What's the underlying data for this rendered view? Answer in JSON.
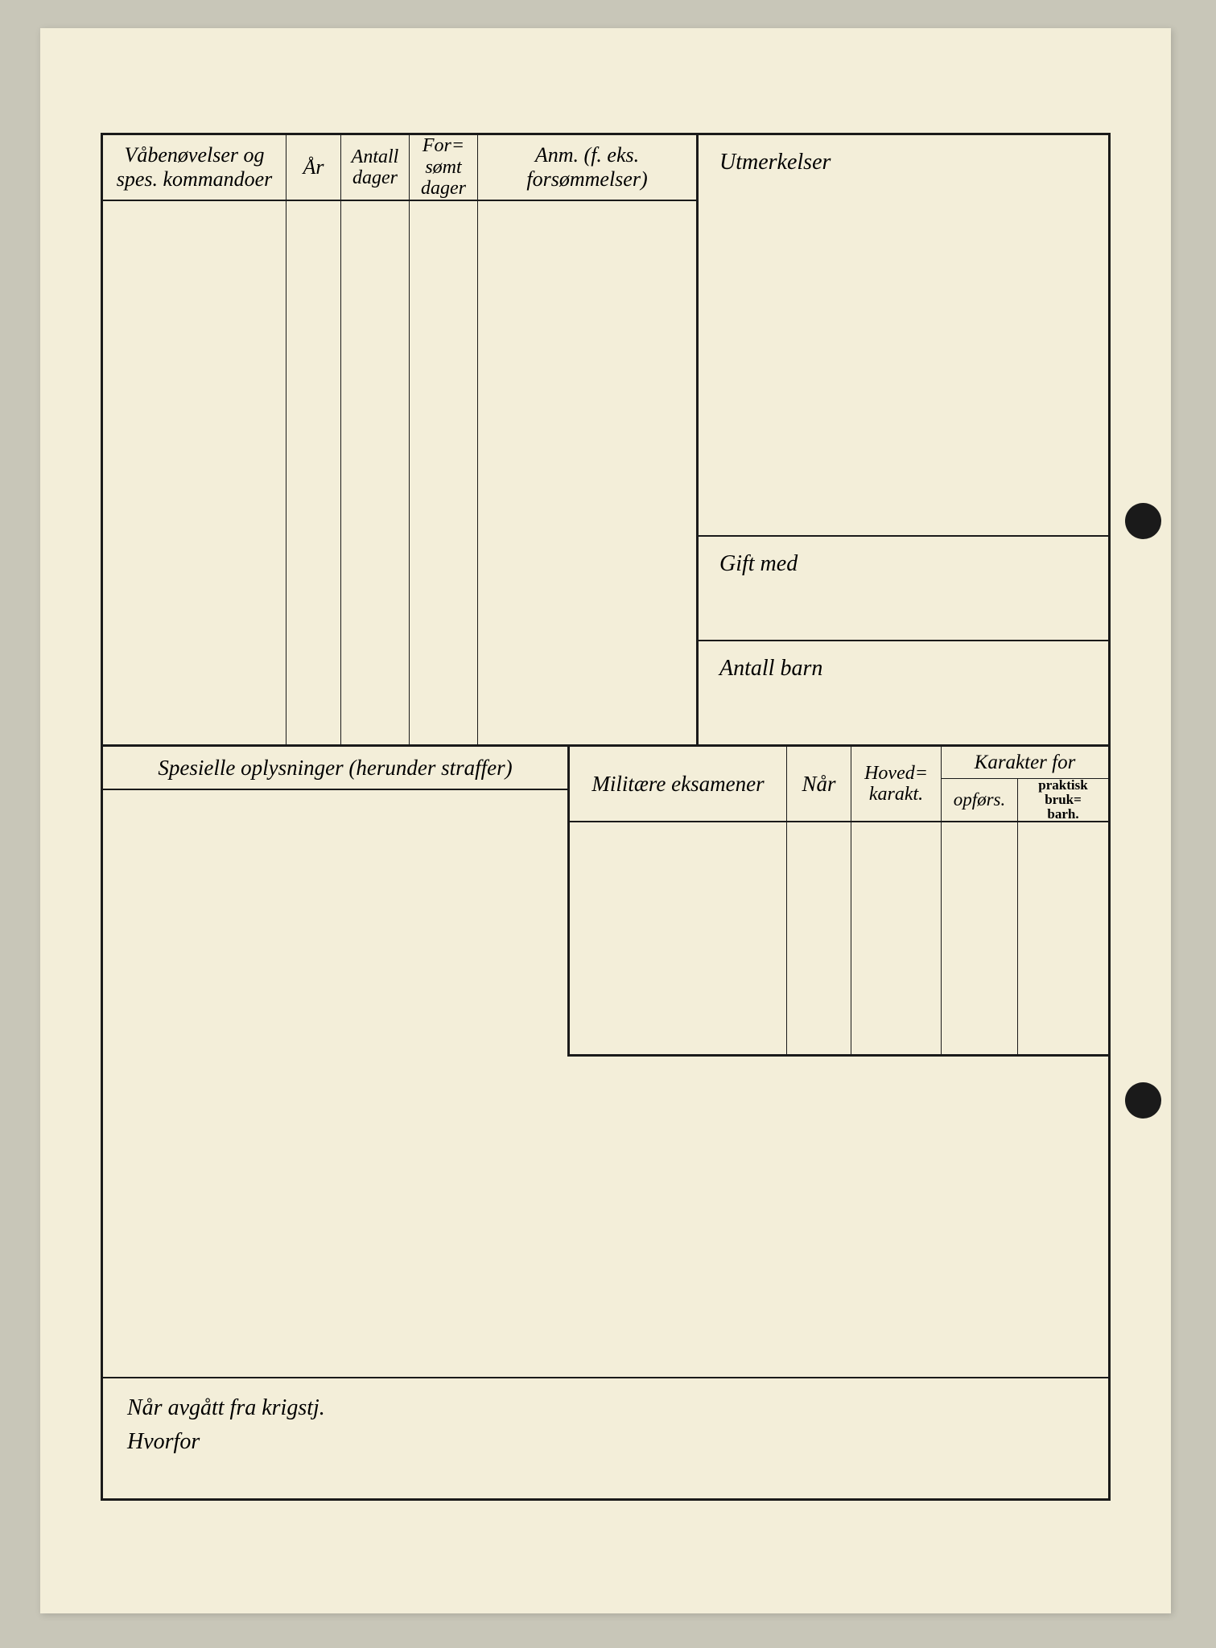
{
  "labels": {
    "weapons_header": "Våbenøvelser og spes. kommandoer",
    "year": "År",
    "days": "Antall dager",
    "missed_days": "For-\nsømt dager",
    "remarks": "Anm. (f. eks. forsømmelser)",
    "distinctions": "Utmerkelser",
    "married_to": "Gift med",
    "num_children": "Antall barn",
    "special_info": "Spesielle oplysninger (herunder straffer)",
    "military_exams": "Militære eksamener",
    "when": "Når",
    "main_grade": "Hoved-\nkarakt.",
    "grade_for": "Karakter for",
    "conduct": "opførs.",
    "practical": "praktisk bruk-\nbarh.",
    "departed": "Når avgått fra krigstj.",
    "why": "Hvorfor"
  },
  "colors": {
    "paper": "#f3eed9",
    "background": "#c8c6b8",
    "ink": "#1a1a1a"
  },
  "typography": {
    "header_style": "italic",
    "header_size_pt": 20,
    "small_bold_size_pt": 13,
    "font_family": "Georgia, serif"
  }
}
